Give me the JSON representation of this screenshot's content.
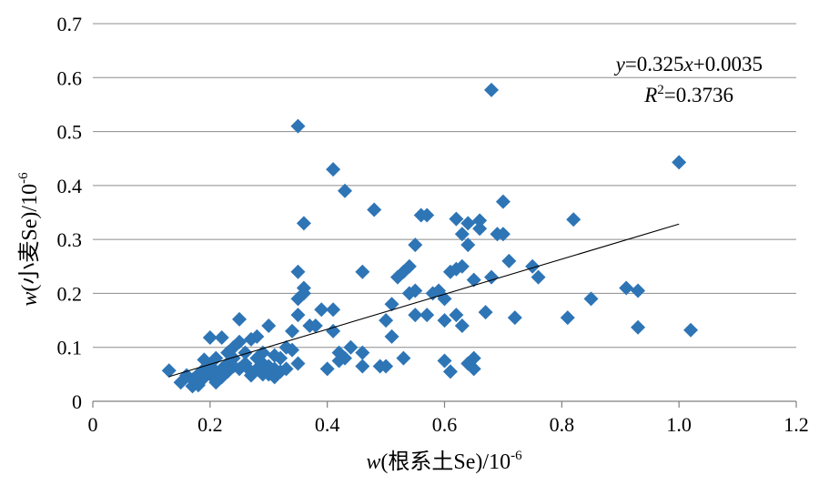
{
  "chart_data": {
    "type": "scatter",
    "xlabel": {
      "var": "w",
      "open": "(",
      "text": "根系土Se",
      "close": ")/10",
      "exp": "-6"
    },
    "ylabel": {
      "var": "w",
      "open": "(",
      "text": "小麦Se",
      "close": ")/10",
      "exp": "-6"
    },
    "xlim": [
      0,
      1.2
    ],
    "ylim": [
      0,
      0.7
    ],
    "xticks": [
      "0",
      "0.2",
      "0.4",
      "0.6",
      "0.8",
      "1.0",
      "1.2"
    ],
    "yticks": [
      "0",
      "0.1",
      "0.2",
      "0.3",
      "0.4",
      "0.5",
      "0.6",
      "0.7"
    ],
    "grid": "horizontal",
    "marker_color": "#2e75b6",
    "trendline_color": "#000000",
    "annotation": {
      "eq_y": "y",
      "eq_mid": "=0.325",
      "eq_x": "x",
      "eq_tail": "+0.0035",
      "r2_R": "R",
      "r2_sup": "2",
      "r2_val": "=0.3736"
    },
    "trendline": {
      "slope": 0.325,
      "intercept": 0.0035,
      "x_range": [
        0.13,
        1.0
      ]
    },
    "series": [
      {
        "points": [
          [
            0.13,
            0.057
          ],
          [
            0.15,
            0.035
          ],
          [
            0.16,
            0.048
          ],
          [
            0.17,
            0.028
          ],
          [
            0.17,
            0.04
          ],
          [
            0.18,
            0.05
          ],
          [
            0.18,
            0.03
          ],
          [
            0.19,
            0.077
          ],
          [
            0.19,
            0.06
          ],
          [
            0.19,
            0.044
          ],
          [
            0.2,
            0.118
          ],
          [
            0.2,
            0.065
          ],
          [
            0.2,
            0.05
          ],
          [
            0.21,
            0.08
          ],
          [
            0.21,
            0.055
          ],
          [
            0.21,
            0.035
          ],
          [
            0.22,
            0.118
          ],
          [
            0.22,
            0.06
          ],
          [
            0.22,
            0.045
          ],
          [
            0.23,
            0.07
          ],
          [
            0.23,
            0.055
          ],
          [
            0.23,
            0.09
          ],
          [
            0.24,
            0.1
          ],
          [
            0.24,
            0.08
          ],
          [
            0.24,
            0.065
          ],
          [
            0.25,
            0.152
          ],
          [
            0.25,
            0.11
          ],
          [
            0.25,
            0.06
          ],
          [
            0.26,
            0.09
          ],
          [
            0.26,
            0.07
          ],
          [
            0.27,
            0.055
          ],
          [
            0.27,
            0.048
          ],
          [
            0.28,
            0.12
          ],
          [
            0.28,
            0.08
          ],
          [
            0.28,
            0.06
          ],
          [
            0.29,
            0.09
          ],
          [
            0.29,
            0.07
          ],
          [
            0.3,
            0.14
          ],
          [
            0.3,
            0.065
          ],
          [
            0.3,
            0.05
          ],
          [
            0.31,
            0.085
          ],
          [
            0.31,
            0.06
          ],
          [
            0.32,
            0.08
          ],
          [
            0.32,
            0.055
          ],
          [
            0.33,
            0.1
          ],
          [
            0.33,
            0.06
          ],
          [
            0.34,
            0.13
          ],
          [
            0.34,
            0.095
          ],
          [
            0.35,
            0.24
          ],
          [
            0.35,
            0.19
          ],
          [
            0.35,
            0.16
          ],
          [
            0.35,
            0.07
          ],
          [
            0.35,
            0.51
          ],
          [
            0.36,
            0.33
          ],
          [
            0.36,
            0.2
          ],
          [
            0.36,
            0.21
          ],
          [
            0.37,
            0.14
          ],
          [
            0.38,
            0.14
          ],
          [
            0.39,
            0.17
          ],
          [
            0.4,
            0.06
          ],
          [
            0.41,
            0.43
          ],
          [
            0.41,
            0.17
          ],
          [
            0.41,
            0.13
          ],
          [
            0.42,
            0.09
          ],
          [
            0.42,
            0.075
          ],
          [
            0.43,
            0.39
          ],
          [
            0.43,
            0.08
          ],
          [
            0.44,
            0.1
          ],
          [
            0.46,
            0.24
          ],
          [
            0.46,
            0.09
          ],
          [
            0.46,
            0.065
          ],
          [
            0.48,
            0.355
          ],
          [
            0.49,
            0.065
          ],
          [
            0.5,
            0.065
          ],
          [
            0.5,
            0.15
          ],
          [
            0.51,
            0.18
          ],
          [
            0.51,
            0.12
          ],
          [
            0.52,
            0.23
          ],
          [
            0.53,
            0.24
          ],
          [
            0.53,
            0.08
          ],
          [
            0.54,
            0.2
          ],
          [
            0.54,
            0.25
          ],
          [
            0.55,
            0.29
          ],
          [
            0.55,
            0.16
          ],
          [
            0.55,
            0.205
          ],
          [
            0.56,
            0.345
          ],
          [
            0.57,
            0.345
          ],
          [
            0.57,
            0.16
          ],
          [
            0.58,
            0.2
          ],
          [
            0.59,
            0.205
          ],
          [
            0.6,
            0.075
          ],
          [
            0.6,
            0.15
          ],
          [
            0.6,
            0.19
          ],
          [
            0.61,
            0.24
          ],
          [
            0.61,
            0.055
          ],
          [
            0.62,
            0.16
          ],
          [
            0.62,
            0.245
          ],
          [
            0.62,
            0.338
          ],
          [
            0.63,
            0.25
          ],
          [
            0.63,
            0.31
          ],
          [
            0.63,
            0.14
          ],
          [
            0.64,
            0.07
          ],
          [
            0.64,
            0.29
          ],
          [
            0.64,
            0.33
          ],
          [
            0.65,
            0.08
          ],
          [
            0.65,
            0.06
          ],
          [
            0.65,
            0.225
          ],
          [
            0.66,
            0.335
          ],
          [
            0.66,
            0.32
          ],
          [
            0.67,
            0.165
          ],
          [
            0.68,
            0.577
          ],
          [
            0.68,
            0.23
          ],
          [
            0.69,
            0.31
          ],
          [
            0.7,
            0.37
          ],
          [
            0.7,
            0.31
          ],
          [
            0.71,
            0.26
          ],
          [
            0.72,
            0.155
          ],
          [
            0.75,
            0.25
          ],
          [
            0.76,
            0.23
          ],
          [
            0.81,
            0.155
          ],
          [
            0.82,
            0.337
          ],
          [
            0.85,
            0.19
          ],
          [
            0.91,
            0.21
          ],
          [
            0.93,
            0.205
          ],
          [
            0.93,
            0.137
          ],
          [
            1.0,
            0.443
          ],
          [
            1.02,
            0.132
          ],
          [
            0.27,
            0.115
          ],
          [
            0.31,
            0.045
          ],
          [
            0.29,
            0.05
          ]
        ]
      }
    ]
  }
}
